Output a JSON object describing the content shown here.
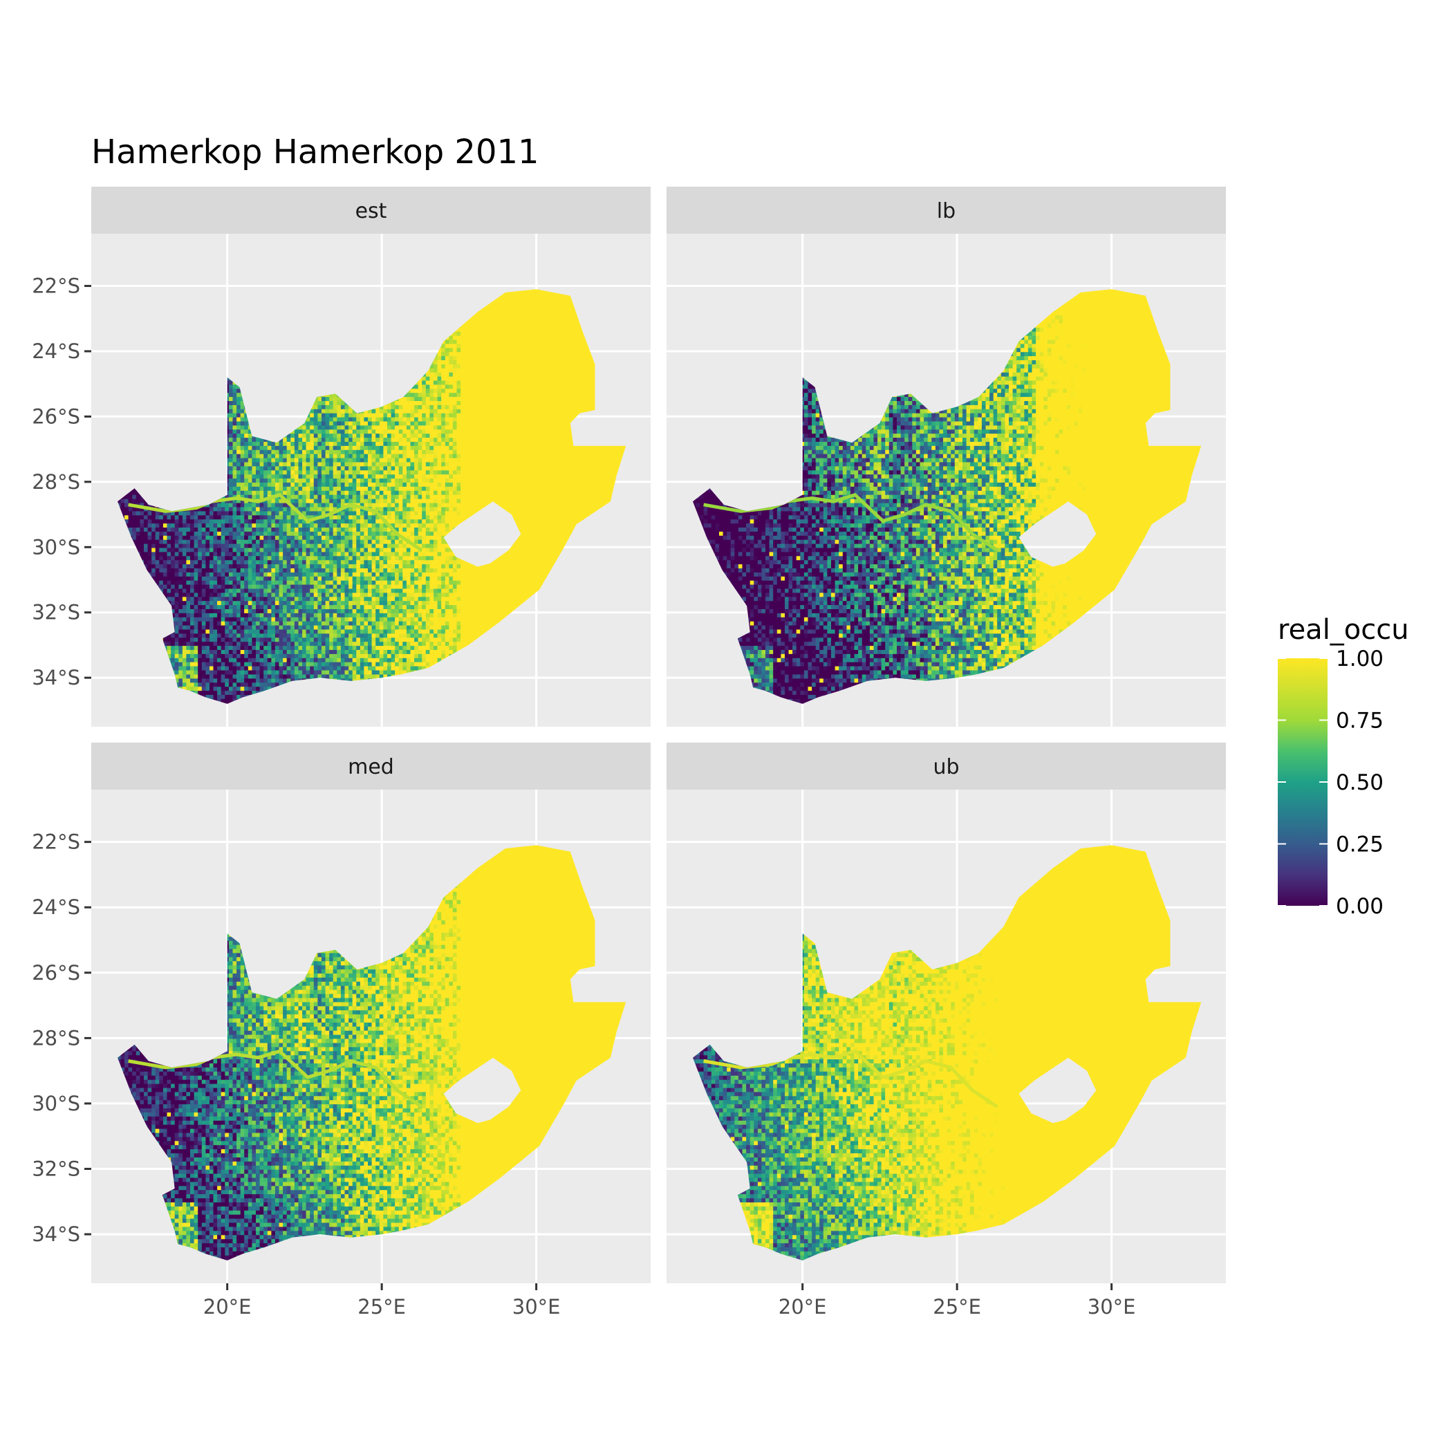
{
  "chart_data": {
    "type": "heatmap",
    "title": "Hamerkop Hamerkop 2011",
    "facets": [
      "est",
      "lb",
      "med",
      "ub"
    ],
    "x_ticks": [
      20,
      25,
      30
    ],
    "x_tick_labels": [
      "20°E",
      "25°E",
      "30°E"
    ],
    "y_ticks": [
      -22,
      -24,
      -26,
      -28,
      -30,
      -32,
      -34
    ],
    "y_tick_labels": [
      "22°S",
      "24°S",
      "26°S",
      "28°S",
      "30°S",
      "32°S",
      "34°S"
    ],
    "xlim": [
      15.6,
      33.7
    ],
    "ylim": [
      -35.5,
      -20.4
    ],
    "grid": true,
    "legend": {
      "title": "real_occu",
      "position": "right",
      "ticks": [
        0,
        0.25,
        0.5,
        0.75,
        1
      ],
      "labels": [
        "0.00",
        "0.25",
        "0.50",
        "0.75",
        "1.00"
      ],
      "colors": [
        "#440154",
        "#3b528b",
        "#21908c",
        "#5dc963",
        "#fde725"
      ]
    },
    "outline_lonlat": [
      [
        16.45,
        -28.6
      ],
      [
        17.0,
        -28.2
      ],
      [
        17.45,
        -28.7
      ],
      [
        18.2,
        -28.9
      ],
      [
        19.4,
        -28.7
      ],
      [
        20.0,
        -28.4
      ],
      [
        20.0,
        -24.8
      ],
      [
        20.4,
        -25.1
      ],
      [
        20.8,
        -26.6
      ],
      [
        21.6,
        -26.8
      ],
      [
        22.5,
        -26.2
      ],
      [
        22.9,
        -25.4
      ],
      [
        23.5,
        -25.3
      ],
      [
        24.2,
        -25.9
      ],
      [
        25.0,
        -25.7
      ],
      [
        25.7,
        -25.4
      ],
      [
        26.5,
        -24.6
      ],
      [
        27.0,
        -23.7
      ],
      [
        28.1,
        -22.8
      ],
      [
        29.0,
        -22.2
      ],
      [
        30.0,
        -22.1
      ],
      [
        31.1,
        -22.3
      ],
      [
        31.5,
        -23.4
      ],
      [
        31.9,
        -24.4
      ],
      [
        31.9,
        -25.8
      ],
      [
        31.4,
        -25.9
      ],
      [
        31.1,
        -26.2
      ],
      [
        31.2,
        -26.9
      ],
      [
        32.0,
        -26.9
      ],
      [
        32.9,
        -26.9
      ],
      [
        32.6,
        -27.8
      ],
      [
        32.4,
        -28.6
      ],
      [
        31.3,
        -29.3
      ],
      [
        30.9,
        -30.0
      ],
      [
        30.1,
        -31.3
      ],
      [
        28.8,
        -32.3
      ],
      [
        27.8,
        -33.0
      ],
      [
        26.5,
        -33.7
      ],
      [
        25.6,
        -33.9
      ],
      [
        25.0,
        -34.0
      ],
      [
        24.0,
        -34.1
      ],
      [
        23.0,
        -34.0
      ],
      [
        22.1,
        -34.1
      ],
      [
        21.2,
        -34.4
      ],
      [
        20.5,
        -34.6
      ],
      [
        20.0,
        -34.8
      ],
      [
        19.3,
        -34.6
      ],
      [
        18.8,
        -34.4
      ],
      [
        18.4,
        -34.3
      ],
      [
        18.3,
        -33.9
      ],
      [
        17.9,
        -32.8
      ],
      [
        18.3,
        -32.6
      ],
      [
        18.2,
        -31.8
      ],
      [
        17.4,
        -30.7
      ],
      [
        16.9,
        -29.7
      ],
      [
        16.45,
        -28.6
      ]
    ],
    "lesotho_hole_lonlat": [
      [
        27.0,
        -29.7
      ],
      [
        27.5,
        -29.3
      ],
      [
        28.6,
        -28.6
      ],
      [
        29.2,
        -29.0
      ],
      [
        29.5,
        -29.6
      ],
      [
        29.1,
        -30.1
      ],
      [
        28.5,
        -30.5
      ],
      [
        28.1,
        -30.6
      ],
      [
        27.4,
        -30.3
      ],
      [
        27.0,
        -29.7
      ]
    ],
    "orange_river_lonlat": [
      [
        16.8,
        -28.7
      ],
      [
        18.0,
        -28.9
      ],
      [
        19.0,
        -28.8
      ],
      [
        19.5,
        -28.6
      ],
      [
        20.3,
        -28.5
      ],
      [
        21.0,
        -28.6
      ],
      [
        21.7,
        -28.4
      ],
      [
        22.6,
        -29.2
      ],
      [
        23.3,
        -29.0
      ],
      [
        24.0,
        -28.7
      ],
      [
        24.8,
        -28.9
      ],
      [
        25.5,
        -29.6
      ],
      [
        26.3,
        -30.1
      ]
    ]
  }
}
